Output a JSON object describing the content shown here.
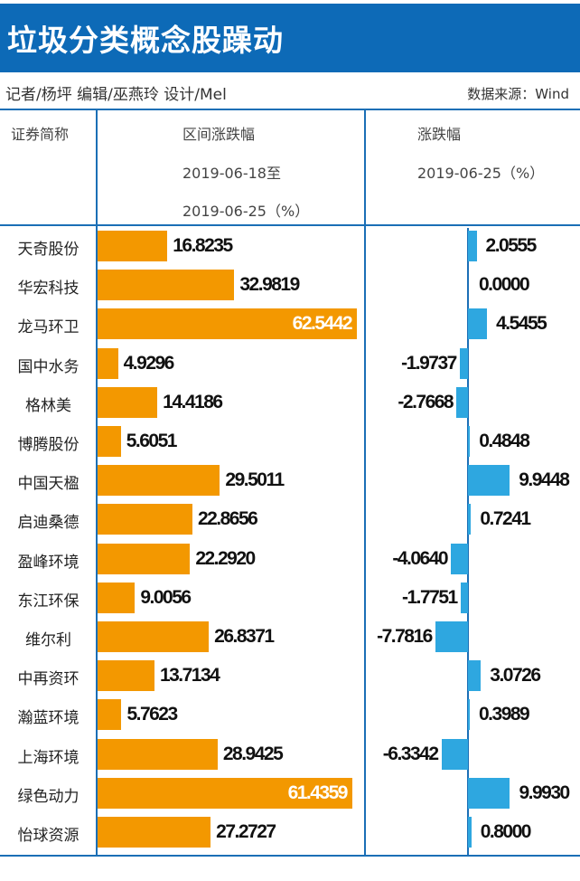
{
  "title": "垃圾分类概念股躁动",
  "credits": {
    "left": "记者/杨坪  编辑/巫燕玲  设计/Mel",
    "right": "数据来源：Wind"
  },
  "headers": {
    "name": "证券简称",
    "range_line1": "区间涨跌幅",
    "range_line2": "2019-06-18至",
    "range_line3": "2019-06-25（%）",
    "daily_line1": "涨跌幅",
    "daily_line2": "2019-06-25（%）"
  },
  "colors": {
    "title_bg": "#0d6ab7",
    "range_bar": "#f39800",
    "daily_bar": "#2ea7e0"
  },
  "chart_data": {
    "type": "bar",
    "categories": [
      "天奇股份",
      "华宏科技",
      "龙马环卫",
      "国中水务",
      "格林美",
      "博腾股份",
      "中国天楹",
      "启迪桑德",
      "盈峰环境",
      "东江环保",
      "维尔利",
      "中再资环",
      "瀚蓝环境",
      "上海环境",
      "绿色动力",
      "怡球资源"
    ],
    "series": [
      {
        "name": "区间涨跌幅 2019-06-18至2019-06-25（%）",
        "labels": [
          "16.8235",
          "32.9819",
          "62.5442",
          "4.9296",
          "14.4186",
          "5.6051",
          "29.5011",
          "22.8656",
          "22.2920",
          "9.0056",
          "26.8371",
          "13.7134",
          "5.7623",
          "28.9425",
          "61.4359",
          "27.2727"
        ],
        "values": [
          16.8235,
          32.9819,
          62.5442,
          4.9296,
          14.4186,
          5.6051,
          29.5011,
          22.8656,
          22.292,
          9.0056,
          26.8371,
          13.7134,
          5.7623,
          28.9425,
          61.4359,
          27.2727
        ]
      },
      {
        "name": "涨跌幅 2019-06-25（%）",
        "labels": [
          "2.0555",
          "0.0000",
          "4.5455",
          "-1.9737",
          "-2.7668",
          "0.4848",
          "9.9448",
          "0.7241",
          "-4.0640",
          "-1.7751",
          "-7.7816",
          "3.0726",
          "0.3989",
          "-6.3342",
          "9.9930",
          "0.8000"
        ],
        "values": [
          2.0555,
          0.0,
          4.5455,
          -1.9737,
          -2.7668,
          0.4848,
          9.9448,
          0.7241,
          -4.064,
          -1.7751,
          -7.7816,
          3.0726,
          0.3989,
          -6.3342,
          9.993,
          0.8
        ]
      }
    ]
  }
}
